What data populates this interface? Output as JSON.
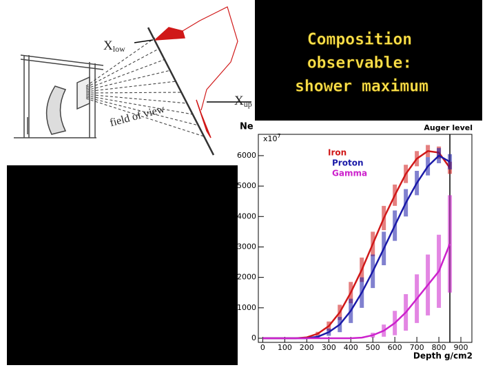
{
  "title_lines": [
    "Composition",
    "observable:",
    "shower maximum"
  ],
  "diagram": {
    "x_low": {
      "symbol": "X",
      "subscript": "low"
    },
    "x_up": {
      "symbol": "X",
      "subscript": "up"
    },
    "field_of_view": "field of view"
  },
  "chart_data": {
    "type": "line",
    "y_label": "Ne",
    "y_multiplier": {
      "base": "x10",
      "exponent": "7"
    },
    "x_label": "Depth g/cm2",
    "annotation": {
      "text": "Auger level",
      "x": 850
    },
    "x": [
      0,
      50,
      100,
      150,
      200,
      250,
      300,
      350,
      400,
      450,
      500,
      550,
      600,
      650,
      700,
      750,
      800,
      850
    ],
    "series": [
      {
        "name": "Iron",
        "color": "#d01818",
        "values": [
          0,
          0,
          0,
          0,
          30,
          150,
          400,
          850,
          1500,
          2250,
          3100,
          3950,
          4700,
          5400,
          5900,
          6150,
          6100,
          5600
        ],
        "errors": [
          0,
          0,
          0,
          0,
          20,
          60,
          150,
          250,
          350,
          400,
          400,
          400,
          350,
          300,
          250,
          200,
          200,
          200
        ]
      },
      {
        "name": "Proton",
        "color": "#1a1aa8",
        "values": [
          0,
          0,
          0,
          0,
          0,
          50,
          200,
          450,
          900,
          1500,
          2200,
          2950,
          3700,
          4450,
          5100,
          5650,
          6000,
          5800
        ],
        "errors": [
          0,
          0,
          0,
          0,
          0,
          40,
          120,
          250,
          400,
          500,
          550,
          550,
          500,
          450,
          400,
          300,
          250,
          250
        ]
      },
      {
        "name": "Gamma",
        "color": "#cc22cc",
        "values": [
          0,
          0,
          0,
          0,
          0,
          0,
          0,
          0,
          0,
          20,
          100,
          250,
          500,
          850,
          1300,
          1750,
          2200,
          3100
        ],
        "errors": [
          0,
          0,
          0,
          0,
          0,
          0,
          0,
          0,
          0,
          20,
          80,
          200,
          400,
          600,
          800,
          1000,
          1200,
          1600
        ]
      }
    ],
    "xlim": [
      -20,
      950
    ],
    "ylim": [
      0,
      6700
    ],
    "xticks": [
      0,
      100,
      200,
      300,
      400,
      500,
      600,
      700,
      800,
      900
    ],
    "yticks": [
      0,
      1000,
      2000,
      3000,
      4000,
      5000,
      6000
    ]
  }
}
